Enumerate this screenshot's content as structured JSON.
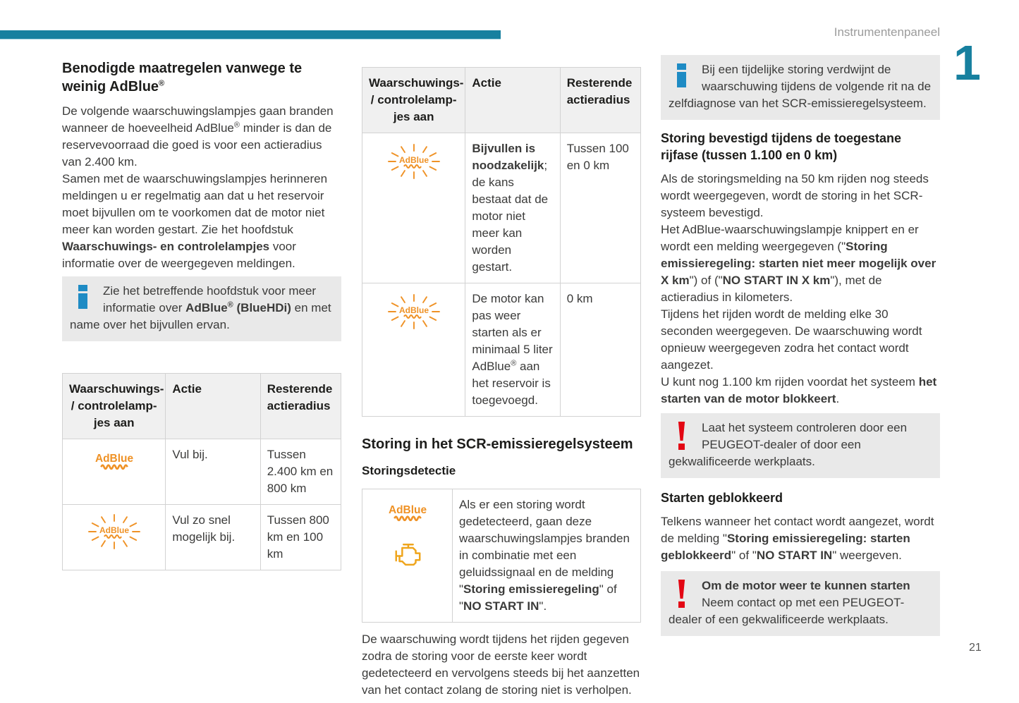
{
  "header": {
    "section_title": "Instrumentenpaneel",
    "chapter_number": "1",
    "page_number": "21"
  },
  "colors": {
    "accent_teal": "#17809f",
    "info_blue": "#1e8bc4",
    "warning_red": "#e30613",
    "adblue_orange": "#ef9226",
    "engine_orange": "#efa51c",
    "box_gray": "#e9e9e9",
    "table_header_gray": "#f0f0f0"
  },
  "icons": {
    "info": "info-icon",
    "warning": "warning-exclamation-icon",
    "adblue_steady": "adblue-warning-lamp-icon",
    "adblue_flashing": "adblue-warning-lamp-flashing-icon",
    "engine": "check-engine-icon"
  },
  "table_headers": {
    "col_lamps": [
      {
        "t": "Waarschuwings-"
      },
      {
        "br": true
      },
      {
        "t": "/ controlelamp-"
      },
      {
        "br": true
      },
      {
        "t": "jes aan"
      }
    ],
    "col_actie": "Actie",
    "col_radius": "Resterende actieradius"
  },
  "col1": {
    "heading": [
      {
        "t": "Benodigde maatregelen vanwege te weinig AdBlue"
      },
      {
        "t": "®",
        "sup": true
      }
    ],
    "intro": [
      {
        "t": "De volgende waarschuwingslampjes gaan branden wanneer de hoeveelheid AdBlue"
      },
      {
        "t": "®",
        "sup": true
      },
      {
        "t": " minder is dan de reservevoorraad die goed is voor een actieradius van 2.400 km."
      },
      {
        "br": true
      },
      {
        "t": "Samen met de waarschuwingslampjes herinneren meldingen u er regelmatig aan dat u het reservoir moet bijvullen om te voorkomen dat de motor niet meer kan worden gestart. Zie het hoofdstuk "
      },
      {
        "t": "Waarschuwings- en controlelampjes",
        "b": true
      },
      {
        "t": " voor informatie over de weergegeven meldingen."
      }
    ],
    "info_box": [
      {
        "t": "Zie het betreffende hoofdstuk voor meer informatie over "
      },
      {
        "t": "AdBlue",
        "b": true
      },
      {
        "t": "®",
        "sup": true,
        "b": true
      },
      {
        "t": " (BlueHDi)",
        "b": true
      },
      {
        "t": " en met name over het bijvullen ervan."
      }
    ],
    "table": {
      "rows": [
        {
          "icon": "adblue-warning-lamp-icon",
          "actie": "Vul bij.",
          "radius": "Tussen 2.400 km en 800 km"
        },
        {
          "icon": "adblue-warning-lamp-flashing-icon",
          "actie": "Vul zo snel mogelijk bij.",
          "radius": "Tussen 800 km en 100 km"
        }
      ]
    }
  },
  "col2": {
    "table": {
      "rows": [
        {
          "icon": "adblue-warning-lamp-flashing-icon",
          "actie": [
            {
              "t": "Bijvullen is noodzakelijk",
              "b": true
            },
            {
              "t": "; de kans bestaat dat de motor niet meer kan worden gestart."
            }
          ],
          "radius": "Tussen 100 en 0 km"
        },
        {
          "icon": "adblue-warning-lamp-flashing-icon",
          "actie": [
            {
              "t": "De motor kan pas weer starten als er minimaal 5 liter AdBlue"
            },
            {
              "t": "®",
              "sup": true
            },
            {
              "t": " aan het reservoir is toegevoegd."
            }
          ],
          "radius": "0 km"
        }
      ]
    },
    "section_heading": "Storing in het SCR-emissieregelsysteem",
    "sub_heading": "Storingsdetectie",
    "detection": {
      "icons": [
        "adblue-warning-lamp-icon",
        "check-engine-icon"
      ],
      "text": [
        {
          "t": "Als er een storing wordt gedetecteerd, gaan deze waarschuwingslampjes branden in combinatie met een geluidssignaal en de melding \""
        },
        {
          "t": "Storing emissieregeling",
          "b": true
        },
        {
          "t": "\" of \""
        },
        {
          "t": "NO START IN",
          "b": true
        },
        {
          "t": "\"."
        }
      ]
    },
    "outro": "De waarschuwing wordt tijdens het rijden gegeven zodra de storing voor de eerste keer wordt gedetecteerd en vervolgens steeds bij het aanzetten van het contact zolang de storing niet is verholpen."
  },
  "col3": {
    "info_box": "Bij een tijdelijke storing verdwijnt de waarschuwing tijdens de volgende rit na de zelfdiagnose van het SCR-emissieregelsysteem.",
    "heading_confirmed": "Storing bevestigd tijdens de toegestane rijfase (tussen 1.100 en 0 km)",
    "para_confirmed": [
      {
        "t": "Als de storingsmelding na 50 km rijden nog steeds wordt weergegeven, wordt de storing in het SCR-systeem bevestigd."
      },
      {
        "br": true
      },
      {
        "t": "Het AdBlue-waarschuwingslampje knippert en er wordt een melding weergegeven (\""
      },
      {
        "t": "Storing emissieregeling: starten niet meer mogelijk over X km",
        "b": true
      },
      {
        "t": "\") of (\""
      },
      {
        "t": "NO START IN X km",
        "b": true
      },
      {
        "t": "\"), met de actieradius in kilometers."
      },
      {
        "br": true
      },
      {
        "t": "Tijdens het rijden wordt de melding elke 30 seconden weergegeven. De waarschuwing wordt opnieuw weergegeven zodra het contact wordt aangezet."
      },
      {
        "br": true
      },
      {
        "t": "U kunt nog 1.100 km rijden voordat het systeem "
      },
      {
        "t": "het starten van de motor blokkeert",
        "b": true
      },
      {
        "t": "."
      }
    ],
    "warning_box_1": "Laat het systeem controleren door een PEUGEOT-dealer of door een gekwalificeerde werkplaats.",
    "heading_blocked": "Starten geblokkeerd",
    "para_blocked": [
      {
        "t": "Telkens wanneer het contact wordt aangezet, wordt de melding \""
      },
      {
        "t": "Storing emissieregeling: starten geblokkeerd",
        "b": true
      },
      {
        "t": "\" of \""
      },
      {
        "t": "NO START IN",
        "b": true
      },
      {
        "t": "\" weergeven."
      }
    ],
    "warning_box_2": [
      {
        "t": "Om de motor weer te kunnen starten",
        "b": true
      },
      {
        "br": true
      },
      {
        "t": "Neem contact op met een PEUGEOT-dealer of een gekwalificeerde werkplaats."
      }
    ]
  }
}
